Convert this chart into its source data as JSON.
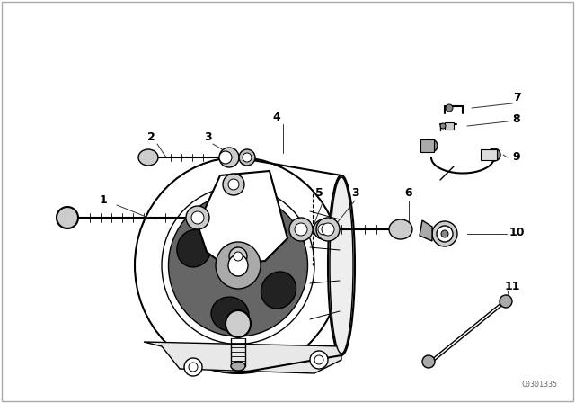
{
  "background_color": "#ffffff",
  "line_color": "#000000",
  "diagram_code": "C0301335",
  "fig_width": 6.4,
  "fig_height": 4.48,
  "dpi": 100,
  "border_color": "#cccccc",
  "text_color": "#000000",
  "gray_fill": "#888888",
  "light_gray": "#dddddd"
}
